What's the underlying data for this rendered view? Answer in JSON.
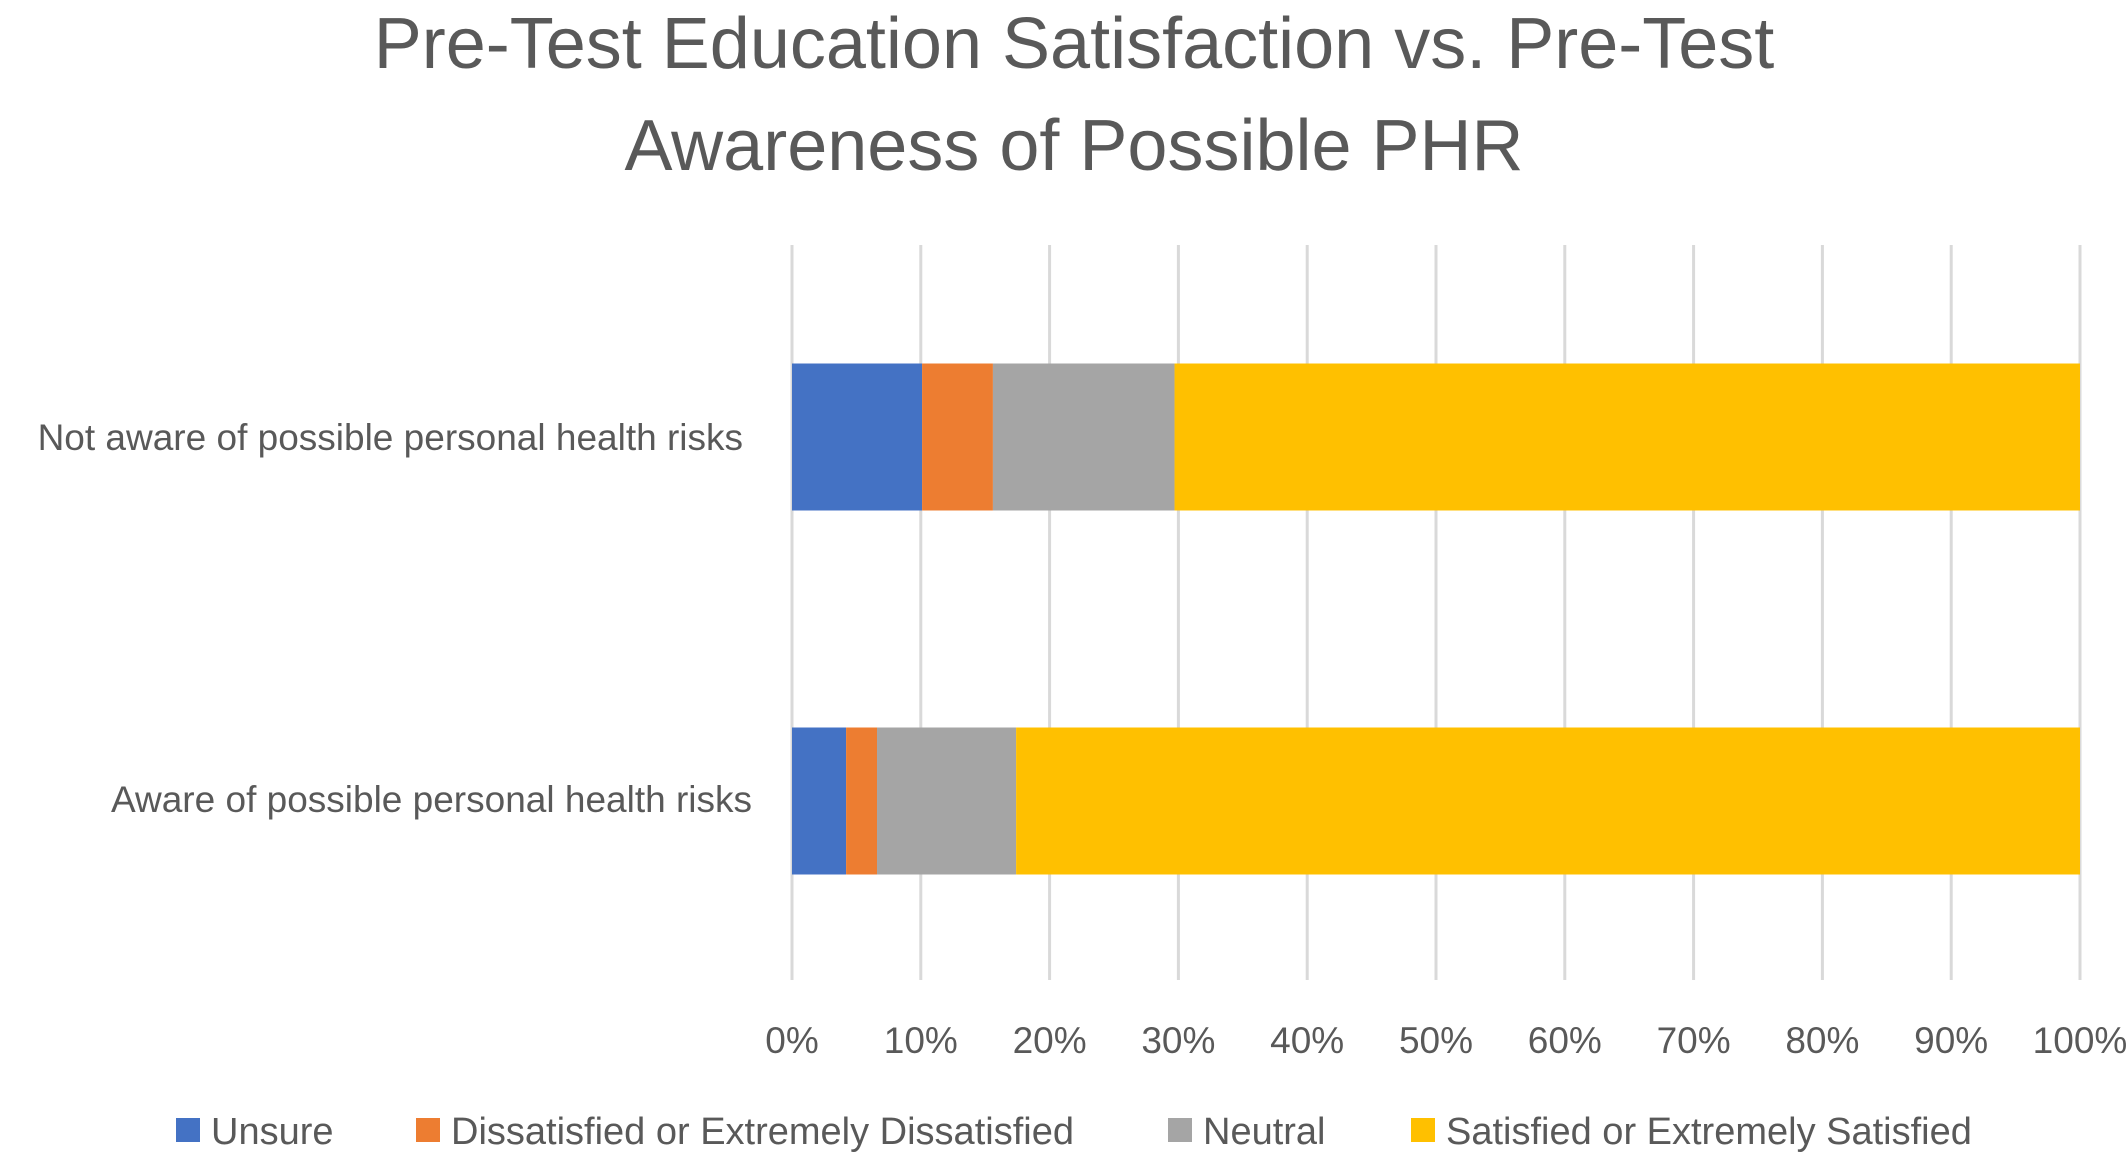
{
  "chart_data": {
    "type": "bar",
    "orientation": "horizontal",
    "stacked": "percent",
    "title_lines": [
      "Pre-Test Education Satisfaction vs. Pre-Test",
      "Awareness of Possible PHR"
    ],
    "categories": [
      "Not aware of possible personal health risks",
      "Aware of possible personal health risks"
    ],
    "series": [
      {
        "name": "Unsure",
        "color": "#4472C4",
        "values": [
          10.1,
          4.2
        ]
      },
      {
        "name": "Dissatisfied or Extremely Dissatisfied",
        "color": "#ED7D31",
        "values": [
          5.5,
          2.4
        ]
      },
      {
        "name": "Neutral",
        "color": "#A5A5A5",
        "values": [
          14.1,
          10.8
        ]
      },
      {
        "name": "Satisfied or Extremely Satisfied",
        "color": "#FFC000",
        "values": [
          70.3,
          82.6
        ]
      }
    ],
    "xlim": [
      0,
      100
    ],
    "ticks": [
      0,
      10,
      20,
      30,
      40,
      50,
      60,
      70,
      80,
      90,
      100
    ],
    "tick_labels": [
      "0%",
      "10%",
      "20%",
      "30%",
      "40%",
      "50%",
      "60%",
      "70%",
      "80%",
      "90%",
      "100%"
    ],
    "grid": true,
    "legend_position": "bottom"
  }
}
